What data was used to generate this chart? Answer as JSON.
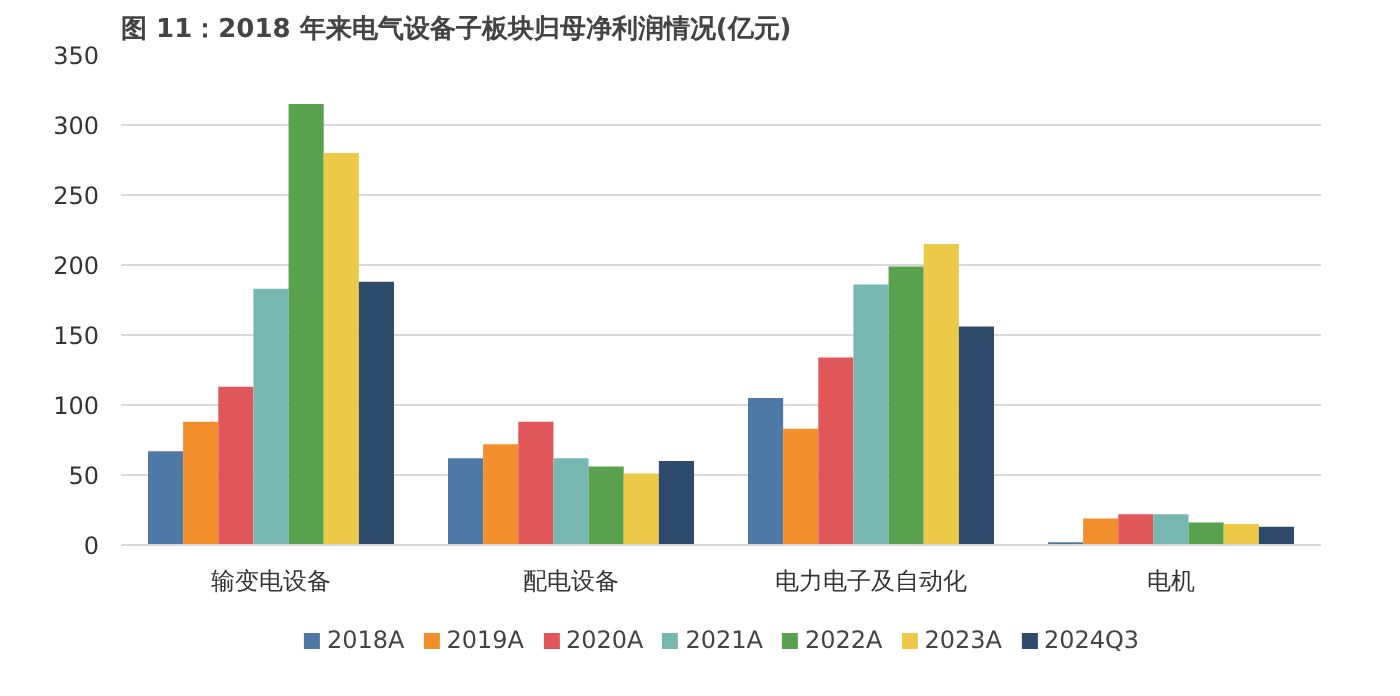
{
  "chart_data": {
    "type": "bar",
    "title": "图 11：2018 年来电气设备子板块归母净利润情况(亿元)",
    "categories": [
      "输变电设备",
      "配电设备",
      "电力电子及自动化",
      "电机"
    ],
    "series": [
      {
        "name": "2018A",
        "color": "#4e79a7",
        "values": [
          67,
          62,
          105,
          2
        ]
      },
      {
        "name": "2019A",
        "color": "#f28e2b",
        "values": [
          88,
          72,
          83,
          19
        ]
      },
      {
        "name": "2020A",
        "color": "#e15759",
        "values": [
          113,
          88,
          134,
          22
        ]
      },
      {
        "name": "2021A",
        "color": "#76b7b2",
        "values": [
          183,
          62,
          186,
          22
        ]
      },
      {
        "name": "2022A",
        "color": "#59a14f",
        "values": [
          315,
          56,
          199,
          16
        ]
      },
      {
        "name": "2023A",
        "color": "#edc948",
        "values": [
          280,
          51,
          215,
          15
        ]
      },
      {
        "name": "2024Q3",
        "color": "#2f4b6c",
        "values": [
          188,
          60,
          156,
          13
        ]
      }
    ],
    "ylim": [
      0,
      350
    ],
    "yticks": [
      0,
      50,
      100,
      150,
      200,
      250,
      300,
      350
    ],
    "grid": "y",
    "legend": "bottom"
  }
}
